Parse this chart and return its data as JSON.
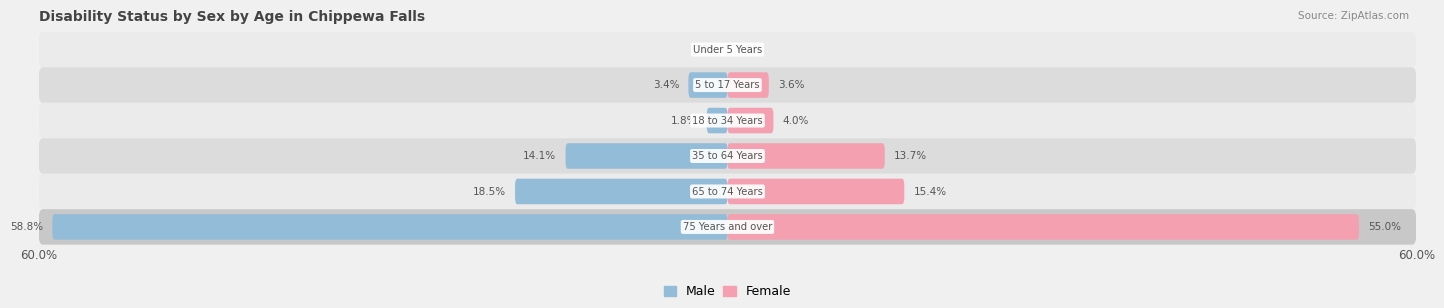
{
  "title": "Disability Status by Sex by Age in Chippewa Falls",
  "source": "Source: ZipAtlas.com",
  "categories": [
    "Under 5 Years",
    "5 to 17 Years",
    "18 to 34 Years",
    "35 to 64 Years",
    "65 to 74 Years",
    "75 Years and over"
  ],
  "male_values": [
    0.0,
    3.4,
    1.8,
    14.1,
    18.5,
    58.8
  ],
  "female_values": [
    0.0,
    3.6,
    4.0,
    13.7,
    15.4,
    55.0
  ],
  "male_color": "#92bcd8",
  "female_color": "#f4a0b0",
  "male_label": "Male",
  "female_label": "Female",
  "axis_max": 60.0,
  "bar_height": 0.72,
  "row_colors": [
    "#ebebeb",
    "#dcdcdc",
    "#ebebeb",
    "#dcdcdc",
    "#ebebeb",
    "#c8c8c8"
  ],
  "title_color": "#444444",
  "value_color": "#555555",
  "category_color": "#555555",
  "source_color": "#888888"
}
